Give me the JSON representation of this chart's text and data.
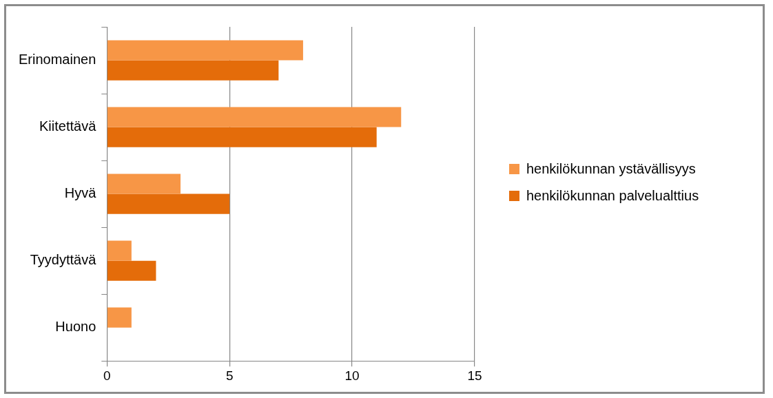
{
  "chart_data": {
    "type": "bar",
    "orientation": "horizontal",
    "categories": [
      "Erinomainen",
      "Kiitettävä",
      "Hyvä",
      "Tyydyttävä",
      "Huono"
    ],
    "series": [
      {
        "name": "henkilökunnan ystävällisyys",
        "color": "#f79646",
        "values": [
          8,
          12,
          3,
          1,
          1
        ]
      },
      {
        "name": "henkilökunnan palvelualttius",
        "color": "#e46c0a",
        "values": [
          7,
          11,
          5,
          2,
          0
        ]
      }
    ],
    "xlim": [
      0,
      15
    ],
    "xticks": [
      0,
      5,
      10,
      15
    ],
    "grid": "x",
    "legend": "right"
  }
}
